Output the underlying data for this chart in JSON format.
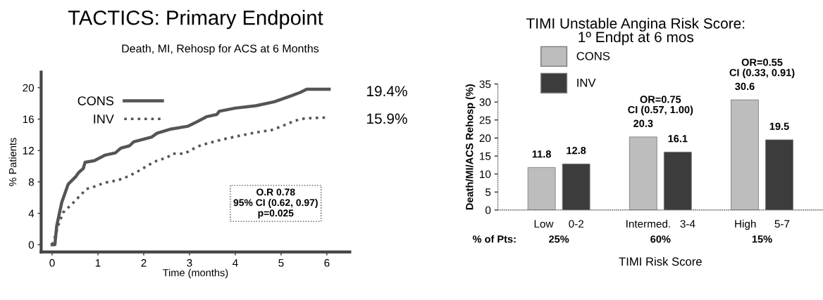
{
  "chart_data": [
    {
      "type": "line",
      "title": "TACTICS: Primary Endpoint",
      "subtitle": "Death, MI, Rehosp for ACS at 6 Months",
      "xlabel": "Time (months)",
      "ylabel": "% Patients",
      "xlim": [
        -0.24,
        6.5
      ],
      "xticks": [
        0,
        1,
        2,
        3,
        4,
        5,
        6
      ],
      "ylim": [
        -0.93,
        22
      ],
      "yticks": [
        0,
        4,
        8,
        12,
        16,
        20
      ],
      "grid": false,
      "legend": "top left",
      "marker": "none",
      "series": [
        {
          "name": "CONS",
          "color": "#555555",
          "line_style": "solid",
          "x": [
            0,
            0.06,
            0.1,
            0.21,
            0.35,
            0.52,
            0.58,
            0.68,
            0.72,
            0.92,
            1.15,
            1.38,
            1.5,
            1.69,
            1.78,
            2.17,
            2.29,
            2.57,
            2.97,
            3.11,
            3.37,
            3.6,
            3.65,
            4.0,
            4.45,
            4.85,
            5.19,
            5.42,
            5.56,
            6.05
          ],
          "values": [
            0,
            0,
            2.4,
            5.4,
            7.7,
            8.7,
            9.2,
            9.7,
            10.5,
            10.7,
            11.4,
            11.7,
            12.3,
            12.6,
            13.1,
            13.7,
            14.2,
            14.7,
            15.1,
            15.5,
            16.3,
            16.6,
            17.0,
            17.4,
            17.7,
            18.2,
            18.9,
            19.4,
            19.8,
            19.8
          ]
        },
        {
          "name": "INV",
          "color": "#555555",
          "line_style": "dotted",
          "x": [
            0,
            0.07,
            0.13,
            0.24,
            0.47,
            0.75,
            0.92,
            1.15,
            1.43,
            1.66,
            1.89,
            2.12,
            2.29,
            2.51,
            2.63,
            2.89,
            3.08,
            3.26,
            3.71,
            4.11,
            4.45,
            4.79,
            5.02,
            5.3,
            5.53,
            5.99
          ],
          "values": [
            0,
            1.1,
            2.4,
            4.1,
            5.4,
            7.1,
            7.4,
            7.9,
            8.2,
            8.7,
            9.4,
            10.2,
            10.7,
            11.1,
            11.6,
            11.6,
            12.2,
            12.7,
            13.4,
            13.9,
            14.3,
            14.6,
            15.1,
            15.8,
            16.1,
            16.2
          ]
        }
      ],
      "annotations": [
        {
          "text": "19.4%",
          "x": 6,
          "y": 19.4
        },
        {
          "text": "15.9%",
          "x": 6,
          "y": 15.9
        },
        "O.R 0.78\n95% CI (0.62, 0.97)\np=0.025"
      ]
    },
    {
      "type": "bar",
      "title": "TIMI Unstable Angina Risk Score:\n1º Endpt at 6 mos",
      "xlabel": "TIMI Risk Score",
      "ylabel": "Death/MI/ACS Rehosp (%)",
      "categories": [
        "Low     0-2",
        "Intermed.   3-4",
        "High      5-7"
      ],
      "ylim": [
        0,
        35
      ],
      "yticks": [
        0,
        5,
        10,
        15,
        20,
        25,
        30,
        35
      ],
      "grid": false,
      "legend": "top left",
      "data_labels": true,
      "series": [
        {
          "name": "CONS",
          "color": "#bdbdbd",
          "values": [
            11.8,
            20.3,
            30.6
          ]
        },
        {
          "name": "INV",
          "color": "#3c3c3c",
          "values": [
            12.8,
            16.1,
            19.5
          ]
        }
      ],
      "annotations": [
        "OR=0.75\nCI (0.57, 1.00)",
        "OR=0.55\nCI (0.33, 0.91)",
        "% of Pts:",
        "25%",
        "60%",
        "15%"
      ]
    }
  ]
}
